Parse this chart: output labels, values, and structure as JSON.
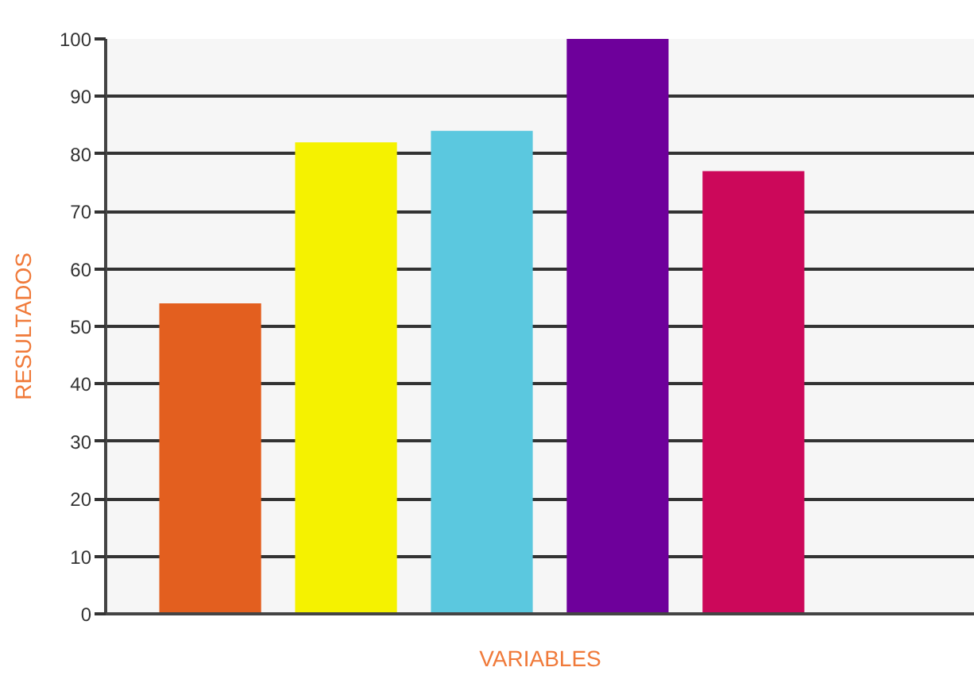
{
  "chart_data": {
    "type": "bar",
    "xlabel": "VARIABLES",
    "ylabel": "RESULTADOS",
    "categories": [
      null,
      null,
      null,
      null,
      null
    ],
    "values": [
      54,
      82,
      84,
      100,
      77
    ],
    "colors": [
      "#e35f1f",
      "#f5f200",
      "#5bc8df",
      "#6e009b",
      "#cc085a"
    ],
    "ylim": [
      0,
      100
    ],
    "yticks": [
      0,
      10,
      20,
      30,
      40,
      50,
      60,
      70,
      80,
      90,
      100
    ],
    "grid": "y",
    "tick_labels": "y"
  }
}
